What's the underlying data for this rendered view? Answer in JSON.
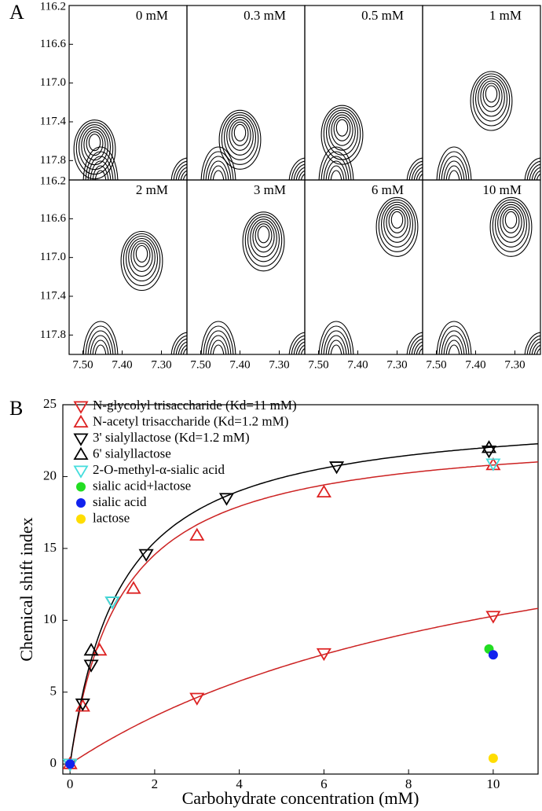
{
  "panel_labels": [
    "A",
    "B"
  ],
  "chart_data": [
    {
      "type": "contour",
      "xlim": [
        7.535,
        7.235
      ],
      "ylim": [
        116.2,
        118.0
      ],
      "xticks": [
        {
          "value": 7.5,
          "label": "7.50"
        },
        {
          "value": 7.4,
          "label": "7.40"
        },
        {
          "value": 7.3,
          "label": "7.30"
        }
      ],
      "yticks": [
        116.2,
        116.6,
        {
          "value": 117,
          "label": "117.0"
        },
        117.4,
        117.8
      ],
      "panels": [
        {
          "title": "0 mM",
          "peak_x": 7.47,
          "peak_y": 117.6
        },
        {
          "title": "0.3 mM",
          "peak_x": 7.4,
          "peak_y": 117.5
        },
        {
          "title": "0.5 mM",
          "peak_x": 7.44,
          "peak_y": 117.45
        },
        {
          "title": "1 mM",
          "peak_x": 7.36,
          "peak_y": 117.1
        },
        {
          "title": "2 mM",
          "peak_x": 7.35,
          "peak_y": 116.95
        },
        {
          "title": "3 mM",
          "peak_x": 7.34,
          "peak_y": 116.75
        },
        {
          "title": "6 mM",
          "peak_x": 7.3,
          "peak_y": 116.6
        },
        {
          "title": "10 mM",
          "peak_x": 7.31,
          "peak_y": 116.6
        }
      ]
    },
    {
      "type": "scatter",
      "x_label": "Carbohydrate concentration (mM)",
      "y_label": "Chemical shift index",
      "xlim": [
        -0.17,
        11.06
      ],
      "ylim": [
        -0.7,
        25
      ],
      "xticks": [
        0,
        2,
        4,
        6,
        8,
        10
      ],
      "yticks": [
        0,
        5,
        10,
        15,
        20,
        25
      ],
      "series": [
        {
          "name": "N-glycolyl trisaccharide (Kd=11 mM)",
          "color": "#dd2222",
          "marker": "down",
          "x": [
            0,
            3,
            6,
            10
          ],
          "values": [
            0,
            4.6,
            7.7,
            10.3
          ],
          "fit": {
            "kd": 11,
            "bmax": 21.6
          }
        },
        {
          "name": "N-acetyl trisaccharide (Kd=1.2 mM)",
          "color": "#dd2222",
          "marker": "up",
          "x": [
            0,
            0.3,
            0.7,
            1.5,
            3,
            6,
            10
          ],
          "values": [
            0,
            4,
            7.9,
            12.2,
            15.9,
            18.9,
            20.8
          ],
          "fit": {
            "kd": 1.2,
            "bmax": 23.3
          }
        },
        {
          "name": "3' sialyllactose (Kd=1.2 mM)",
          "color": "#000000",
          "marker": "down",
          "x": [
            0,
            0.3,
            0.5,
            1,
            1.8,
            3.7,
            6.3,
            9.9
          ],
          "values": [
            0,
            4.2,
            6.9,
            11.3,
            14.6,
            18.5,
            20.7,
            21.8
          ],
          "fit": {
            "kd": 1.2,
            "bmax": 24.7
          }
        },
        {
          "name": "6' sialyllactose",
          "color": "#000000",
          "marker": "up",
          "x": [
            0.5,
            9.9
          ],
          "values": [
            7.9,
            22
          ]
        },
        {
          "name": "2-O-methyl-α-sialic acid",
          "color": "#44dddd",
          "marker": "down",
          "x": [
            0,
            1,
            10
          ],
          "values": [
            0,
            11.3,
            20.9
          ]
        },
        {
          "name": "sialic acid+lactose",
          "color": "#22dd22",
          "marker": "dot",
          "x": [
            9.9
          ],
          "values": [
            8
          ]
        },
        {
          "name": "sialic acid",
          "color": "#1122ee",
          "marker": "dot",
          "x": [
            0,
            10
          ],
          "values": [
            0,
            7.6
          ]
        },
        {
          "name": "lactose",
          "color": "#ffdd00",
          "marker": "dot",
          "x": [
            10
          ],
          "values": [
            0.4
          ]
        }
      ]
    }
  ]
}
